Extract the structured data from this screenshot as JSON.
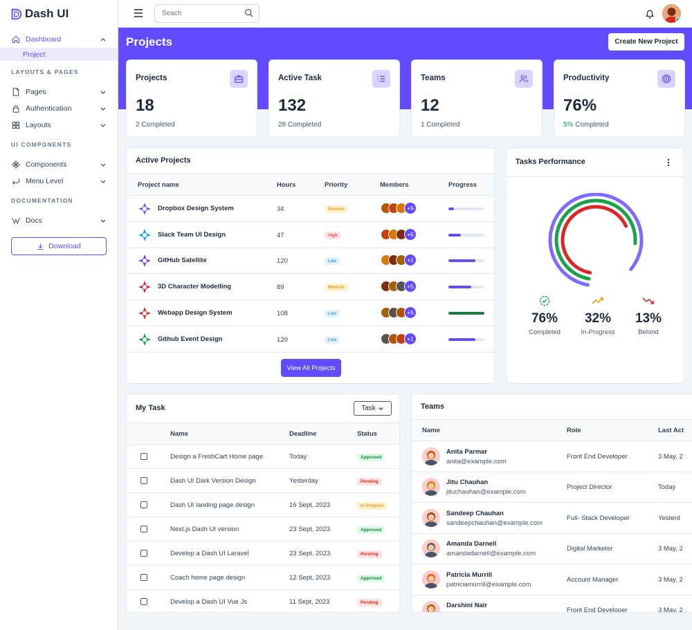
{
  "brand": {
    "name": "Dash UI"
  },
  "sidebar": {
    "dashboard": "Dashboard",
    "project": "Project",
    "sections": [
      "LAYOUTS & PAGES",
      "UI COMPONENTS",
      "DOCUMENTATION"
    ],
    "pages": "Pages",
    "authentication": "Authentication",
    "layouts": "Layouts",
    "components": "Components",
    "menu_level": "Menu Level",
    "docs": "Docs",
    "download": "Download"
  },
  "header": {
    "search_placeholder": "Seach"
  },
  "page": {
    "title": "Projects",
    "create_button": "Create New Project"
  },
  "stats": [
    {
      "title": "Projects",
      "value": "18",
      "sub": "2 Completed",
      "icon": "briefcase-icon"
    },
    {
      "title": "Active Task",
      "value": "132",
      "sub": "28 Completed",
      "icon": "list-icon"
    },
    {
      "title": "Teams",
      "value": "12",
      "sub": "1 Completed",
      "icon": "users-icon"
    },
    {
      "title": "Productivity",
      "value": "76%",
      "sub_highlight": "5%",
      "sub": " Completed",
      "icon": "target-icon"
    }
  ],
  "active_projects": {
    "title": "Active Projects",
    "columns": [
      "Project name",
      "Hours",
      "Priority",
      "Members",
      "Progress"
    ],
    "rows": [
      {
        "name": "Dropbox Design System",
        "hours": "34",
        "priority": "Medium",
        "more": "+5",
        "progress": 0.15,
        "color": "#624bff",
        "logo_color": "#6d5dfc"
      },
      {
        "name": "Slack Team UI Design",
        "hours": "47",
        "priority": "High",
        "more": "+5",
        "progress": 0.35,
        "color": "#624bff",
        "logo_color": "#0ea5e9"
      },
      {
        "name": "GitHub Satellite",
        "hours": "120",
        "priority": "Low",
        "more": "+1",
        "progress": 0.75,
        "color": "#624bff",
        "logo_color": "#7c3aed"
      },
      {
        "name": "3D Character Modelling",
        "hours": "89",
        "priority": "Medium",
        "more": "+5",
        "progress": 0.63,
        "color": "#624bff",
        "logo_color": "#e11d48"
      },
      {
        "name": "Webapp Design System",
        "hours": "108",
        "priority": "Low",
        "more": "+5",
        "progress": 1.0,
        "color": "#15803d",
        "logo_color": "#dc2626"
      },
      {
        "name": "Github Event Design",
        "hours": "120",
        "priority": "Low",
        "more": "+1",
        "progress": 0.75,
        "color": "#624bff",
        "logo_color": "#16a34a"
      }
    ],
    "view_all": "View All Projects"
  },
  "tasks_performance": {
    "title": "Tasks Performance",
    "stats": [
      {
        "value": "76%",
        "label": "Completed",
        "value_num": 76,
        "color": "#16a34a"
      },
      {
        "value": "32%",
        "label": "In-Progress",
        "value_num": 32,
        "color": "#f59e0b"
      },
      {
        "value": "13%",
        "label": "Behind",
        "value_num": 13,
        "color": "#dc2626"
      }
    ]
  },
  "my_task": {
    "title": "My Task",
    "filter": "Task",
    "columns": [
      "Name",
      "Deadline",
      "Status"
    ],
    "rows": [
      {
        "name": "Design a FreshCart Home page",
        "deadline": "Today",
        "status": "Approved"
      },
      {
        "name": "Dash UI Dark Version Design",
        "deadline": "Yesterday",
        "status": "Pending"
      },
      {
        "name": "Dash UI landing page design",
        "deadline": "16 Sept, 2023",
        "status": "In Progress"
      },
      {
        "name": "Next.js Dash UI version",
        "deadline": "23 Sept, 2023",
        "status": "Approved"
      },
      {
        "name": "Develop a Dash UI Laravel",
        "deadline": "23 Sept, 2023",
        "status": "Pending"
      },
      {
        "name": "Coach home page design",
        "deadline": "12 Sept, 2023",
        "status": "Approved"
      },
      {
        "name": "Develop a Dash UI Vue Js",
        "deadline": "11 Sept, 2023",
        "status": "Pending"
      }
    ]
  },
  "teams": {
    "title": "Teams",
    "columns": [
      "Name",
      "Role",
      "Last Act"
    ],
    "rows": [
      {
        "name": "Anita Parmar",
        "email": "anita@example.com",
        "role": "Front End Developer",
        "last": "3 May, 2",
        "color": "#b45309"
      },
      {
        "name": "Jitu Chauhan",
        "email": "jituchauhan@example.com",
        "role": "Project Director",
        "last": "Today",
        "color": "#d97706"
      },
      {
        "name": "Sandeep Chauhan",
        "email": "sandeepchauhan@example.com",
        "role": "Full- Stack Developer",
        "last": "Yesterd",
        "color": "#92400e"
      },
      {
        "name": "Amanda Darnell",
        "email": "amandadarnell@example.com",
        "role": "Digital Marketer",
        "last": "3 May, 2",
        "color": "#57534e"
      },
      {
        "name": "Patricia Murrill",
        "email": "patriciamurrill@example.com",
        "role": "Account Manager",
        "last": "3 May, 2",
        "color": "#ea580c"
      },
      {
        "name": "Darshini Nair",
        "email": "",
        "role": "Front End Developer",
        "last": "3 May, 2",
        "color": "#a16207"
      }
    ]
  }
}
